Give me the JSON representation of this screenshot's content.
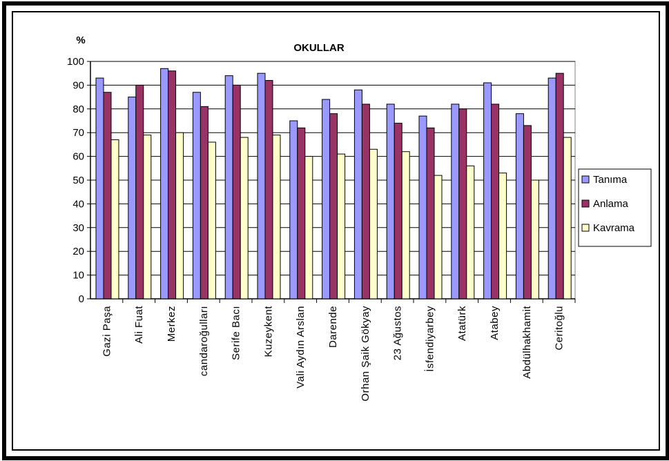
{
  "chart_data": {
    "type": "bar",
    "title": "OKULLAR",
    "ylabel": "%",
    "xlabel": "",
    "ylim": [
      0,
      100
    ],
    "ytick_step": 10,
    "grid": true,
    "legend_position": "right",
    "categories": [
      "Gazi Paşa",
      "Ali Fuat",
      "Merkez",
      "candaroğulları",
      "Serife Bacı",
      "Kuzeykent",
      "Vali Aydın Arslan",
      "Darende",
      "Orhan Şaik Gökyay",
      "23 Ağustos",
      "İsfendiyarbey",
      "Atatürk",
      "Atabey",
      "Abdülhakhamit",
      "Ceritoğlu"
    ],
    "series": [
      {
        "name": "Tanıma",
        "color": "#9999ff",
        "values": [
          93,
          85,
          97,
          87,
          94,
          95,
          75,
          84,
          88,
          82,
          77,
          82,
          91,
          78,
          93
        ]
      },
      {
        "name": "Anlama",
        "color": "#993366",
        "values": [
          87,
          90,
          96,
          81,
          90,
          92,
          72,
          78,
          82,
          74,
          72,
          80,
          82,
          73,
          95
        ]
      },
      {
        "name": "Kavrama",
        "color": "#ffffcc",
        "values": [
          67,
          69,
          70,
          66,
          68,
          69,
          60,
          61,
          63,
          62,
          52,
          56,
          53,
          50,
          68
        ]
      }
    ]
  }
}
